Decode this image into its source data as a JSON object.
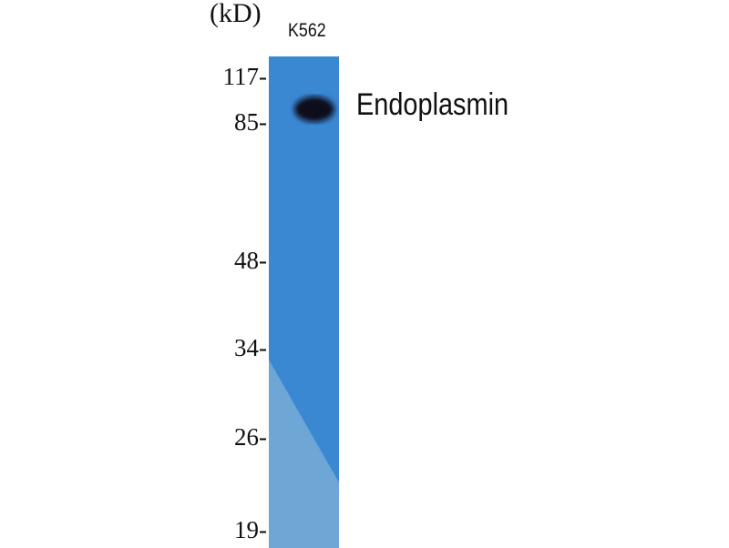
{
  "unit_label": "(kD)",
  "lane_label": "K562",
  "protein_label": "Endoplasmin",
  "markers": [
    "117-",
    "85-",
    "48-",
    "34-",
    "26-",
    "19-"
  ],
  "colors": {
    "membrane": "#3a87d2",
    "membrane_light": "#6ea6d6",
    "band": "#0a0f1a"
  }
}
